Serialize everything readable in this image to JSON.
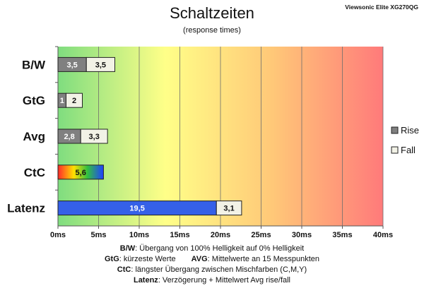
{
  "chart_data": {
    "type": "bar",
    "orientation": "horizontal",
    "stacked": true,
    "title": "Schaltzeiten",
    "subtitle": "(response times)",
    "corner_label": "Viewsonic Elite XG270QG",
    "categories": [
      "B/W",
      "GtG",
      "Avg",
      "CtC",
      "Latenz"
    ],
    "series": [
      {
        "name": "Rise",
        "values": [
          3.5,
          1,
          2.8,
          5.6,
          19.5
        ],
        "labels": [
          "3,5",
          "1",
          "2,8",
          "5,6",
          "19,5"
        ]
      },
      {
        "name": "Fall",
        "values": [
          3.5,
          2,
          3.3,
          null,
          3.1
        ],
        "labels": [
          "3,5",
          "2",
          "3,3",
          "",
          "3,1"
        ]
      }
    ],
    "xlim": [
      0,
      40
    ],
    "xticks": [
      0,
      5,
      10,
      15,
      20,
      25,
      30,
      35,
      40
    ],
    "xtick_labels": [
      "0ms",
      "5ms",
      "10ms",
      "15ms",
      "20ms",
      "25ms",
      "30ms",
      "35ms",
      "40ms"
    ],
    "grid": true,
    "legend_position": "right",
    "background_gradient": [
      "#7fdd7f",
      "#ffff88",
      "#ffc878",
      "#ff7a7a"
    ],
    "colors": {
      "rise": "#808080",
      "fall": "#f2f2e6",
      "latency_rise": "#3560e8",
      "ctc_gradient": [
        "#ff2a2a",
        "#ffe000",
        "#30c040",
        "#2040ff"
      ]
    },
    "notes": [
      {
        "label": "B/W",
        "text": ":  Übergang von 100% Helligkeit auf 0% Helligkeit"
      },
      {
        "label": "GtG",
        "text": ": kürzeste  Werte",
        "label2": "AVG",
        "text2": ": Mittelwerte  an 15 Messpunkten"
      },
      {
        "label": "CtC",
        "text": ": längster Übergang  zwischen Mischfarben (C,M,Y)"
      },
      {
        "label": "Latenz",
        "text": ": Verzögerung  + Mittelwert  Avg rise/fall"
      }
    ]
  }
}
